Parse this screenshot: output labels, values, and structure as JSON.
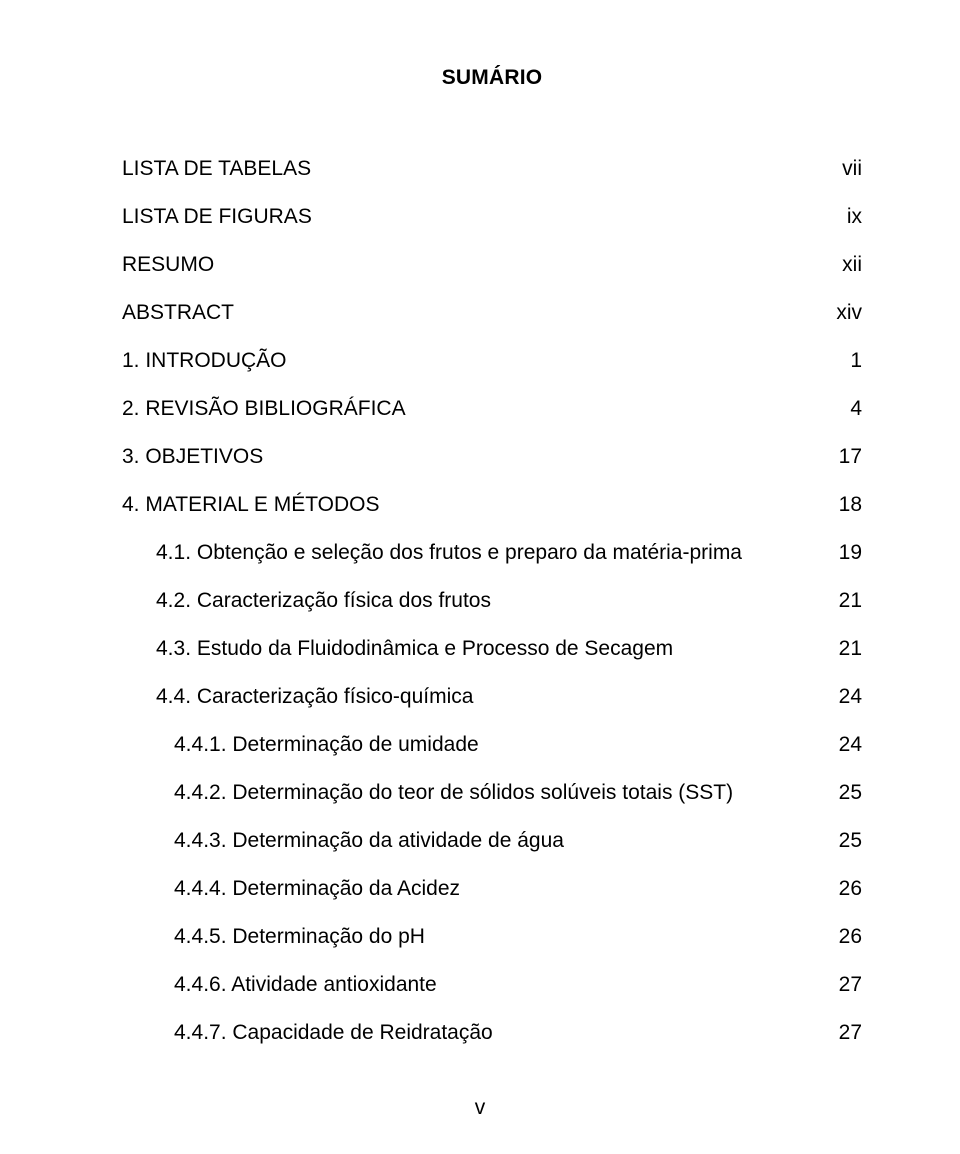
{
  "title": "SUMÁRIO",
  "entries": [
    {
      "label": "LISTA DE TABELAS",
      "page": "vii",
      "indent": 0
    },
    {
      "label": "LISTA DE FIGURAS",
      "page": " ix",
      "indent": 0
    },
    {
      "label": "RESUMO",
      "page": "xii",
      "indent": 0
    },
    {
      "label": "ABSTRACT",
      "page": "xiv",
      "indent": 0
    },
    {
      "label": "1. INTRODUÇÃO",
      "page": "1",
      "indent": 0
    },
    {
      "label": "2. REVISÃO BIBLIOGRÁFICA",
      "page": "4",
      "indent": 0
    },
    {
      "label": "3. OBJETIVOS",
      "page": "17",
      "indent": 0
    },
    {
      "label": "4. MATERIAL E MÉTODOS",
      "page": "18",
      "indent": 0
    },
    {
      "label": "4.1. Obtenção e seleção dos frutos e preparo da matéria-prima",
      "page": "19",
      "indent": 1
    },
    {
      "label": "4.2. Caracterização física dos frutos",
      "page": "21",
      "indent": 1
    },
    {
      "label": "4.3. Estudo da Fluidodinâmica e Processo de Secagem",
      "page": "21",
      "indent": 1
    },
    {
      "label": "4.4. Caracterização físico-química",
      "page": "24",
      "indent": 1
    },
    {
      "label": "4.4.1. Determinação de umidade",
      "page": "24",
      "indent": 2
    },
    {
      "label": "4.4.2. Determinação do teor de sólidos solúveis totais (SST)",
      "page": "25",
      "indent": 2
    },
    {
      "label": "4.4.3. Determinação da atividade de água",
      "page": "25",
      "indent": 2
    },
    {
      "label": "4.4.4. Determinação da Acidez",
      "page": "26",
      "indent": 2
    },
    {
      "label": "4.4.5. Determinação do pH",
      "page": "26",
      "indent": 2
    },
    {
      "label": "4.4.6. Atividade antioxidante",
      "page": "27",
      "indent": 2
    },
    {
      "label": "4.4.7. Capacidade de Reidratação",
      "page": "27",
      "indent": 2
    }
  ],
  "footer": "v",
  "style": {
    "font_family": "Arial",
    "font_size_pt": 16,
    "text_color": "#000000",
    "background_color": "#ffffff",
    "leader_char": "."
  }
}
